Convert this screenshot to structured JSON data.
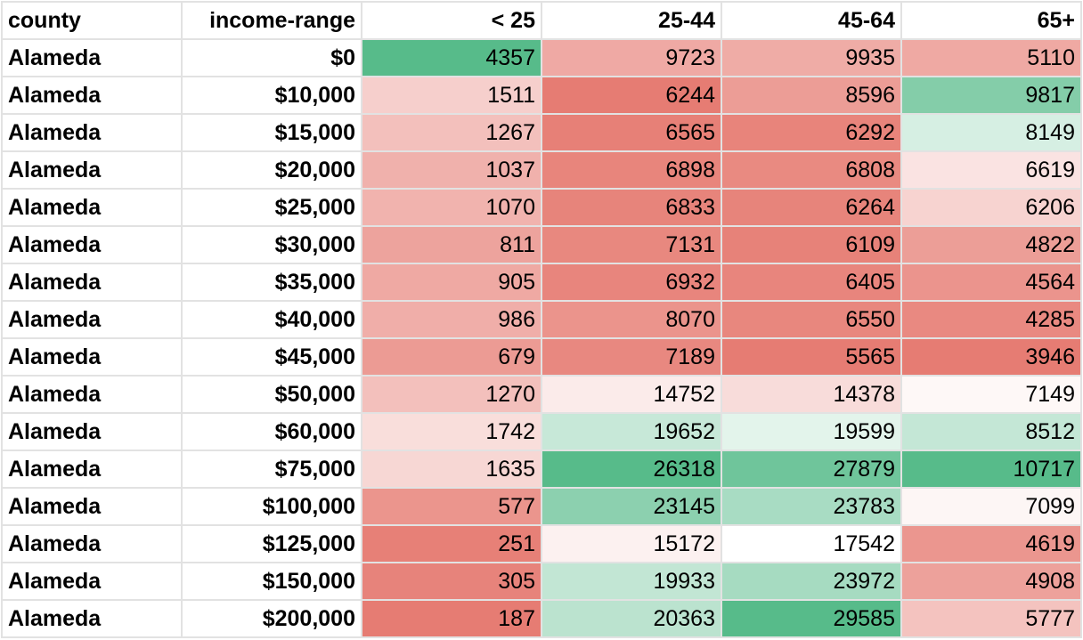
{
  "headers": [
    "county",
    "income-range",
    "< 25",
    "25-44",
    "45-64",
    "65+"
  ],
  "rows": [
    {
      "county": "Alameda",
      "income": "$0",
      "values": [
        "4357",
        "9723",
        "9935",
        "5110"
      ]
    },
    {
      "county": "Alameda",
      "income": "$10,000",
      "values": [
        "1511",
        "6244",
        "8596",
        "9817"
      ]
    },
    {
      "county": "Alameda",
      "income": "$15,000",
      "values": [
        "1267",
        "6565",
        "6292",
        "8149"
      ]
    },
    {
      "county": "Alameda",
      "income": "$20,000",
      "values": [
        "1037",
        "6898",
        "6808",
        "6619"
      ]
    },
    {
      "county": "Alameda",
      "income": "$25,000",
      "values": [
        "1070",
        "6833",
        "6264",
        "6206"
      ]
    },
    {
      "county": "Alameda",
      "income": "$30,000",
      "values": [
        "811",
        "7131",
        "6109",
        "4822"
      ]
    },
    {
      "county": "Alameda",
      "income": "$35,000",
      "values": [
        "905",
        "6932",
        "6405",
        "4564"
      ]
    },
    {
      "county": "Alameda",
      "income": "$40,000",
      "values": [
        "986",
        "8070",
        "6550",
        "4285"
      ]
    },
    {
      "county": "Alameda",
      "income": "$45,000",
      "values": [
        "679",
        "7189",
        "5565",
        "3946"
      ]
    },
    {
      "county": "Alameda",
      "income": "$50,000",
      "values": [
        "1270",
        "14752",
        "14378",
        "7149"
      ]
    },
    {
      "county": "Alameda",
      "income": "$60,000",
      "values": [
        "1742",
        "19652",
        "19599",
        "8512"
      ]
    },
    {
      "county": "Alameda",
      "income": "$75,000",
      "values": [
        "1635",
        "26318",
        "27879",
        "10717"
      ]
    },
    {
      "county": "Alameda",
      "income": "$100,000",
      "values": [
        "577",
        "23145",
        "23783",
        "7099"
      ]
    },
    {
      "county": "Alameda",
      "income": "$125,000",
      "values": [
        "251",
        "15172",
        "17542",
        "4619"
      ]
    },
    {
      "county": "Alameda",
      "income": "$150,000",
      "values": [
        "305",
        "19933",
        "23972",
        "4908"
      ]
    },
    {
      "county": "Alameda",
      "income": "$200,000",
      "values": [
        "187",
        "20363",
        "29585",
        "5777"
      ]
    }
  ],
  "colors": {
    "scale_low": "#e67c73",
    "scale_mid": "#ffffff",
    "scale_high": "#57bb8a",
    "gridline": "#e2e2e2"
  }
}
